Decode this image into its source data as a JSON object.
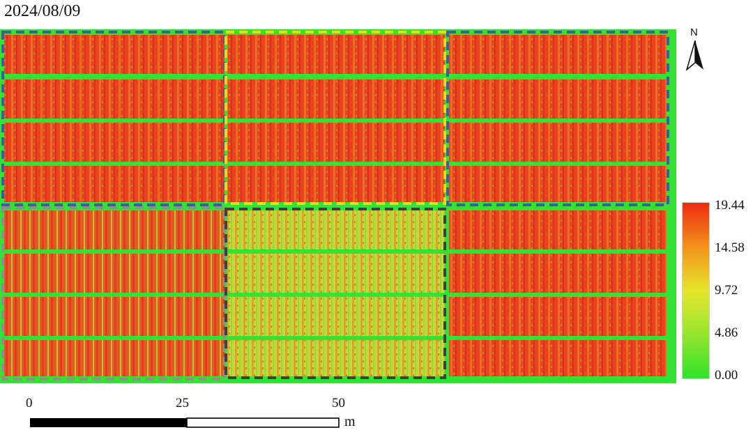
{
  "date": "2024/08/09",
  "north": {
    "label": "N",
    "icon": "north-arrow-icon"
  },
  "legend": {
    "ticks": [
      "19.44",
      "14.58",
      "9.72",
      "4.86",
      "0.00"
    ],
    "colors": {
      "high": "#ee2a12",
      "mid_high": "#f3921a",
      "mid": "#e6e62a",
      "low": "#95e52f",
      "zero": "#2fe32a"
    }
  },
  "scale": {
    "labels": [
      "0",
      "25",
      "50"
    ],
    "unit": "m"
  },
  "colors": {
    "plot_red": "#e63a1e",
    "plot_orange": "#ee7a22",
    "path_green": "#33e233",
    "box_blue": "#3d5f9c",
    "box_yellow": "#f1d61e",
    "box_gray": "#8f8f8f",
    "box_dark": "#404040"
  }
}
